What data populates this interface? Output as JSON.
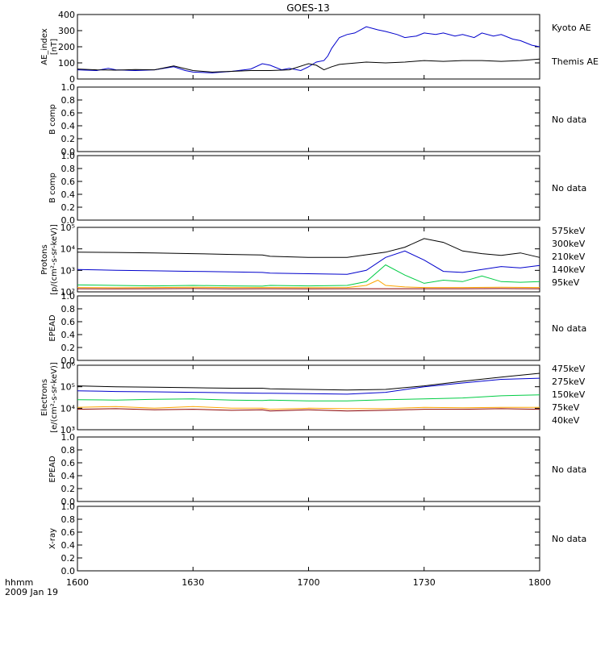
{
  "chart_data": {
    "type": "line",
    "title": "GOES-13",
    "x_axis": {
      "ticks": [
        "1600",
        "1630",
        "1700",
        "1730",
        "1800"
      ],
      "range_minutes": [
        0,
        120
      ],
      "unit_label": "hhmm",
      "date_label": "2009 Jan 19"
    },
    "panels": [
      {
        "id": "ae",
        "ylabel": [
          "AE_index",
          "[nT]"
        ],
        "ylim": [
          0,
          420
        ],
        "ticks": [
          "0",
          "100",
          "200",
          "300",
          "400"
        ],
        "status": "",
        "legend": [
          {
            "label": "Kyoto AE",
            "color": "#0000cc"
          },
          {
            "label": "Themis AE",
            "color": "#000000"
          }
        ],
        "series": [
          {
            "name": "Kyoto AE",
            "color": "#0000cc",
            "x": [
              0,
              5,
              8,
              10,
              15,
              20,
              25,
              28,
              30,
              35,
              40,
              45,
              48,
              50,
              53,
              55,
              58,
              60,
              62,
              64,
              65,
              66,
              68,
              70,
              72,
              75,
              78,
              80,
              83,
              85,
              88,
              90,
              93,
              95,
              98,
              100,
              103,
              105,
              108,
              110,
              113,
              115,
              118,
              120
            ],
            "y": [
              60,
              55,
              70,
              60,
              55,
              60,
              80,
              55,
              45,
              40,
              50,
              65,
              100,
              90,
              60,
              70,
              55,
              80,
              110,
              120,
              150,
              200,
              270,
              290,
              300,
              340,
              320,
              310,
              290,
              270,
              280,
              300,
              290,
              300,
              280,
              290,
              270,
              300,
              280,
              290,
              260,
              250,
              220,
              210
            ]
          },
          {
            "name": "Themis AE",
            "color": "#000000",
            "x": [
              0,
              5,
              10,
              15,
              20,
              25,
              30,
              35,
              40,
              45,
              50,
              55,
              60,
              62,
              64,
              66,
              68,
              70,
              75,
              80,
              85,
              90,
              95,
              100,
              105,
              110,
              115,
              120
            ],
            "y": [
              65,
              60,
              58,
              62,
              60,
              85,
              55,
              45,
              50,
              55,
              55,
              60,
              100,
              90,
              60,
              80,
              95,
              100,
              110,
              105,
              110,
              120,
              115,
              120,
              120,
              115,
              120,
              130
            ]
          }
        ]
      },
      {
        "id": "bcomp1",
        "ylabel": [
          "B comp"
        ],
        "ylim": [
          0,
          1
        ],
        "ticks": [
          "0.0",
          "0.2",
          "0.4",
          "0.6",
          "0.8",
          "1.0"
        ],
        "status": "No data",
        "legend": [],
        "series": []
      },
      {
        "id": "bcomp2",
        "ylabel": [
          "B comp"
        ],
        "ylim": [
          0,
          1
        ],
        "ticks": [
          "0.0",
          "0.2",
          "0.4",
          "0.6",
          "0.8",
          "1.0"
        ],
        "status": "No data",
        "legend": [],
        "series": []
      },
      {
        "id": "protons",
        "ylabel": [
          "Protons",
          "[p/(cm²-s-sr-keV)]"
        ],
        "scale": "log",
        "ylim": [
          100,
          100000
        ],
        "ticks": [
          "10²",
          "10³",
          "10⁴",
          "10⁵"
        ],
        "status": "",
        "legend": [
          {
            "label": "575keV",
            "color": "#8b0000"
          },
          {
            "label": "300keV",
            "color": "#ffa500"
          },
          {
            "label": "210keV",
            "color": "#00cc44"
          },
          {
            "label": "140keV",
            "color": "#0000cc"
          },
          {
            "label": "95keV",
            "color": "#000000"
          }
        ],
        "series": [
          {
            "name": "95keV",
            "color": "#000000",
            "x": [
              0,
              10,
              20,
              30,
              40,
              48,
              50,
              60,
              70,
              80,
              85,
              90,
              95,
              100,
              105,
              110,
              115,
              120
            ],
            "y": [
              7000,
              6800,
              6500,
              6000,
              5500,
              5200,
              4500,
              4000,
              4000,
              7000,
              12000,
              30000,
              20000,
              8000,
              6000,
              5000,
              6500,
              4000
            ]
          },
          {
            "name": "140keV",
            "color": "#0000cc",
            "x": [
              0,
              10,
              20,
              30,
              40,
              48,
              50,
              60,
              70,
              75,
              80,
              85,
              90,
              95,
              100,
              105,
              110,
              115,
              120
            ],
            "y": [
              1100,
              1000,
              950,
              900,
              850,
              800,
              750,
              700,
              650,
              1000,
              4000,
              8000,
              3000,
              900,
              800,
              1100,
              1500,
              1300,
              1700
            ]
          },
          {
            "name": "210keV",
            "color": "#00cc44",
            "x": [
              0,
              10,
              20,
              30,
              40,
              48,
              50,
              60,
              70,
              75,
              80,
              85,
              90,
              95,
              100,
              105,
              110,
              115,
              120
            ],
            "y": [
              210,
              200,
              190,
              200,
              190,
              185,
              200,
              190,
              200,
              300,
              1800,
              600,
              250,
              350,
              300,
              550,
              300,
              280,
              300
            ]
          },
          {
            "name": "300keV",
            "color": "#ffa500",
            "x": [
              0,
              10,
              20,
              30,
              40,
              48,
              50,
              60,
              70,
              75,
              78,
              80,
              85,
              90,
              100,
              110,
              120
            ],
            "y": [
              160,
              155,
              160,
              165,
              160,
              160,
              160,
              158,
              160,
              200,
              350,
              200,
              170,
              160,
              160,
              165,
              160
            ]
          },
          {
            "name": "575keV",
            "color": "#8b0000",
            "x": [
              0,
              10,
              20,
              30,
              40,
              48,
              50,
              60,
              70,
              80,
              90,
              100,
              110,
              120
            ],
            "y": [
              140,
              138,
              140,
              142,
              138,
              140,
              140,
              138,
              140,
              140,
              140,
              140,
              142,
              140
            ]
          }
        ]
      },
      {
        "id": "epead1",
        "ylabel": [
          "EPEAD"
        ],
        "ylim": [
          0,
          1
        ],
        "ticks": [
          "0.0",
          "0.2",
          "0.4",
          "0.6",
          "0.8",
          "1.0"
        ],
        "status": "No data",
        "legend": [],
        "series": []
      },
      {
        "id": "electrons",
        "ylabel": [
          "Electrons",
          "[e/(cm²-s-sr-keV)]"
        ],
        "scale": "log",
        "ylim": [
          1000,
          1000000
        ],
        "ticks": [
          "10³",
          "10⁴",
          "10⁵",
          "10⁶"
        ],
        "status": "",
        "legend": [
          {
            "label": "475keV",
            "color": "#8b0000"
          },
          {
            "label": "275keV",
            "color": "#ffa500"
          },
          {
            "label": "150keV",
            "color": "#00cc44"
          },
          {
            "label": "75keV",
            "color": "#0000cc"
          },
          {
            "label": "40keV",
            "color": "#000000"
          }
        ],
        "series": [
          {
            "name": "40keV",
            "color": "#000000",
            "x": [
              0,
              10,
              20,
              30,
              40,
              48,
              50,
              60,
              70,
              80,
              90,
              100,
              110,
              120
            ],
            "y": [
              110000,
              100000,
              95000,
              90000,
              85000,
              85000,
              80000,
              75000,
              70000,
              75000,
              110000,
              180000,
              280000,
              420000
            ]
          },
          {
            "name": "75keV",
            "color": "#0000cc",
            "x": [
              0,
              10,
              20,
              30,
              40,
              48,
              50,
              60,
              70,
              80,
              90,
              100,
              110,
              120
            ],
            "y": [
              65000,
              60000,
              58000,
              55000,
              52000,
              50000,
              50000,
              48000,
              45000,
              55000,
              100000,
              150000,
              220000,
              250000
            ]
          },
          {
            "name": "150keV",
            "color": "#00cc44",
            "x": [
              0,
              10,
              20,
              30,
              40,
              48,
              50,
              60,
              70,
              80,
              90,
              100,
              110,
              120
            ],
            "y": [
              25000,
              24000,
              26000,
              27000,
              24000,
              23000,
              24000,
              22000,
              22000,
              25000,
              27000,
              30000,
              38000,
              42000
            ]
          },
          {
            "name": "275keV",
            "color": "#ffa500",
            "x": [
              0,
              10,
              20,
              30,
              40,
              48,
              50,
              60,
              70,
              80,
              90,
              100,
              110,
              120
            ],
            "y": [
              11000,
              12000,
              10000,
              12000,
              10000,
              10000,
              9000,
              10000,
              9500,
              9500,
              11000,
              10500,
              11000,
              11000
            ]
          },
          {
            "name": "475keV",
            "color": "#8b0000",
            "x": [
              0,
              10,
              20,
              30,
              40,
              48,
              50,
              60,
              70,
              80,
              90,
              100,
              110,
              120
            ],
            "y": [
              9000,
              9500,
              8500,
              9000,
              8000,
              8500,
              7500,
              8500,
              7500,
              8000,
              9000,
              9000,
              9500,
              9000
            ]
          }
        ]
      },
      {
        "id": "epead2",
        "ylabel": [
          "EPEAD"
        ],
        "ylim": [
          0,
          1
        ],
        "ticks": [
          "0.0",
          "0.2",
          "0.4",
          "0.6",
          "0.8",
          "1.0"
        ],
        "status": "No data",
        "legend": [],
        "series": []
      },
      {
        "id": "xray",
        "ylabel": [
          "X-ray"
        ],
        "ylim": [
          0,
          1
        ],
        "ticks": [
          "0.0",
          "0.2",
          "0.4",
          "0.6",
          "0.8",
          "1.0"
        ],
        "status": "No data",
        "legend": [],
        "series": []
      }
    ]
  }
}
